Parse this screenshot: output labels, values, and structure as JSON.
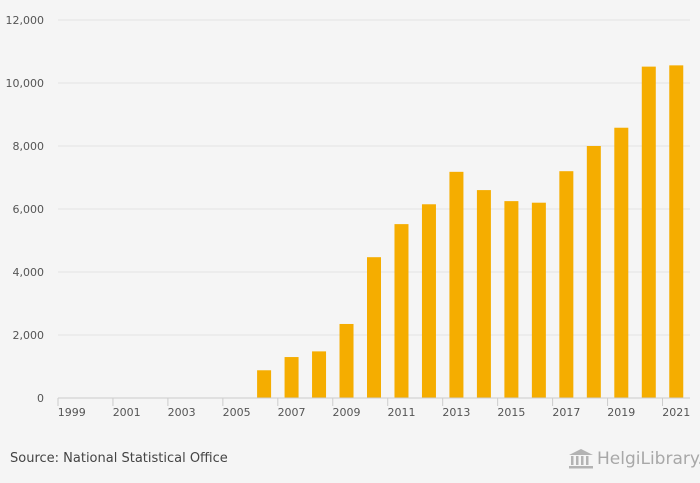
{
  "chart_data": {
    "type": "bar",
    "categories": [
      "1999",
      "2000",
      "2001",
      "2002",
      "2003",
      "2004",
      "2005",
      "2006",
      "2007",
      "2008",
      "2009",
      "2010",
      "2011",
      "2012",
      "2013",
      "2014",
      "2015",
      "2016",
      "2017",
      "2018",
      "2019",
      "2020",
      "2021"
    ],
    "x_tick_labels": [
      "1999",
      "2001",
      "2003",
      "2005",
      "2007",
      "2009",
      "2011",
      "2013",
      "2015",
      "2017",
      "2019",
      "2021"
    ],
    "values": [
      0,
      0,
      0,
      0,
      0,
      0,
      0,
      880,
      1300,
      1480,
      2350,
      4470,
      5520,
      6150,
      7180,
      6600,
      6250,
      6200,
      7200,
      8000,
      8580,
      10520,
      10560
    ],
    "y_tick_labels": [
      "0",
      "2,000",
      "4,000",
      "6,000",
      "8,000",
      "10,000",
      "12,000"
    ],
    "ylim": [
      0,
      12000
    ],
    "grid": "horizontal",
    "bar_color": "#f5ad00",
    "title": "",
    "xlabel": "",
    "ylabel": ""
  },
  "footer": {
    "source_text": "Source: National Statistical Office",
    "logo_text": "HelgiLibrary."
  },
  "colors": {
    "background": "#f5f5f5",
    "grid": "#e2e2e2",
    "axis": "#cccccc"
  }
}
